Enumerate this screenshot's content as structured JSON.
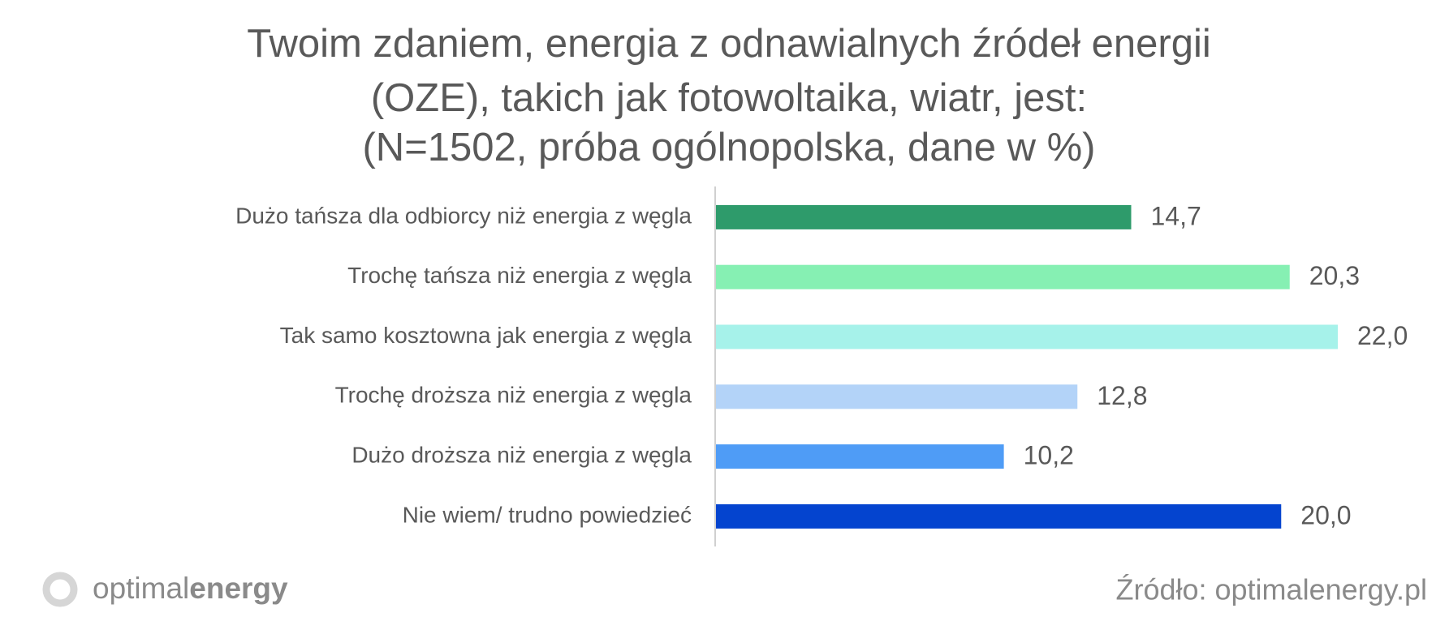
{
  "chart_data": {
    "type": "bar",
    "orientation": "horizontal",
    "title": [
      "Twoim zdaniem, energia z odnawialnych źródeł energii",
      "(OZE), takich jak fotowoltaika, wiatr, jest:"
    ],
    "subtitle": "(N=1502, próba ogólnopolska, dane w %)",
    "categories": [
      "Dużo tańsza dla odbiorcy niż energia z węgla",
      "Trochę tańsza niż energia z węgla",
      "Tak samo kosztowna jak energia z węgla",
      "Trochę droższa niż energia z węgla",
      "Dużo droższa niż energia z węgla",
      "Nie wiem/ trudno powiedzieć"
    ],
    "values": [
      14.7,
      20.3,
      22.0,
      12.8,
      10.2,
      20.0
    ],
    "value_labels": [
      "14,7",
      "20,3",
      "22,0",
      "12,8",
      "10,2",
      "20,0"
    ],
    "colors": [
      "#2e9b6b",
      "#86f0b3",
      "#a6f2ea",
      "#b3d3f8",
      "#4f9cf6",
      "#0444cf"
    ],
    "source": "Źródło: optimalenergy.pl",
    "logo": {
      "light": "optimal",
      "bold": "energy"
    }
  }
}
